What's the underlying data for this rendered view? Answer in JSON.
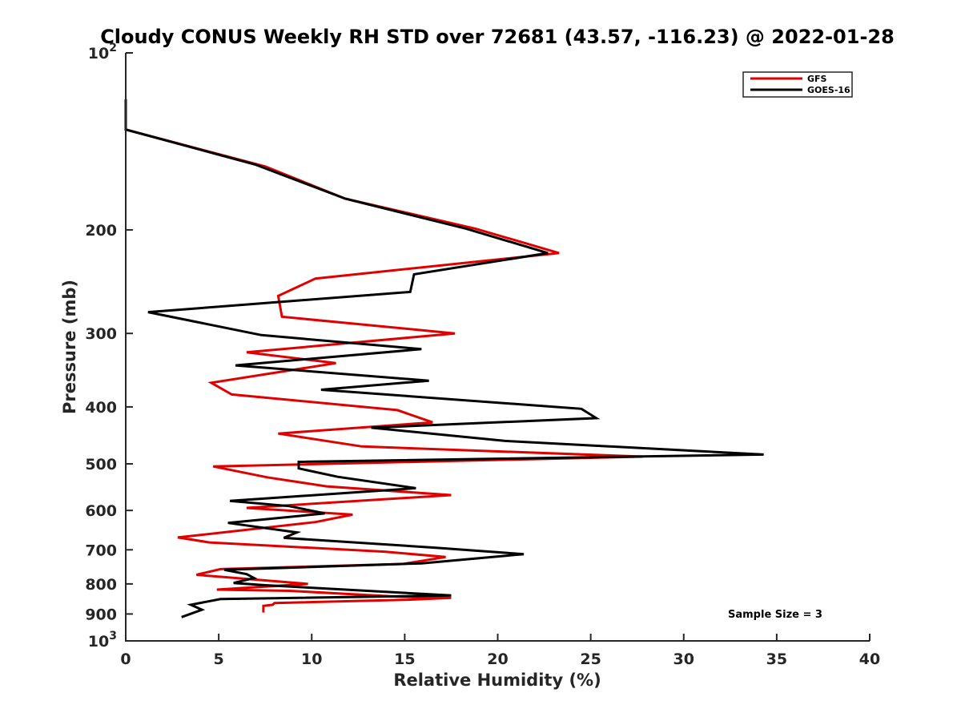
{
  "chart_data": {
    "type": "line",
    "title": "Cloudy CONUS Weekly RH STD over 72681 (43.57, -116.23) @ 2022-01-28",
    "xlabel": "Relative Humidity (%)",
    "ylabel": "Pressure (mb)",
    "xlim": [
      0,
      40
    ],
    "ylim": [
      100,
      1000
    ],
    "y_scale": "log",
    "y_reversed": true,
    "grid": false,
    "legend_position": "top-right",
    "x_ticks": [
      "0",
      "5",
      "10",
      "15",
      "20",
      "25",
      "30",
      "35",
      "40"
    ],
    "y_ticks": [
      {
        "value": 100,
        "base": "10",
        "exp": "2"
      },
      {
        "value": 200,
        "label": "200"
      },
      {
        "value": 300,
        "label": "300"
      },
      {
        "value": 400,
        "label": "400"
      },
      {
        "value": 500,
        "label": "500"
      },
      {
        "value": 600,
        "label": "600"
      },
      {
        "value": 700,
        "label": "700"
      },
      {
        "value": 800,
        "label": "800"
      },
      {
        "value": 900,
        "label": "900"
      },
      {
        "value": 1000,
        "base": "10",
        "exp": "3"
      }
    ],
    "annotation": "Sample Size = 3",
    "series": [
      {
        "name": "GFS",
        "color": "#e00000",
        "points": [
          [
            0.0,
            120
          ],
          [
            0.0,
            135
          ],
          [
            7.5,
            156
          ],
          [
            11.8,
            177
          ],
          [
            18.8,
            199
          ],
          [
            23.3,
            219
          ],
          [
            10.2,
            242
          ],
          [
            8.2,
            259
          ],
          [
            8.4,
            281
          ],
          [
            17.7,
            300
          ],
          [
            6.5,
            323
          ],
          [
            11.3,
            337
          ],
          [
            4.6,
            364
          ],
          [
            5.7,
            381
          ],
          [
            14.6,
            405
          ],
          [
            16.5,
            425
          ],
          [
            8.2,
            444
          ],
          [
            12.7,
            467
          ],
          [
            27.8,
            486
          ],
          [
            4.7,
            505
          ],
          [
            7.6,
            527
          ],
          [
            10.8,
            546
          ],
          [
            17.5,
            565
          ],
          [
            6.5,
            594
          ],
          [
            12.2,
            610
          ],
          [
            10.2,
            628
          ],
          [
            2.8,
            667
          ],
          [
            4.5,
            680
          ],
          [
            13.9,
            705
          ],
          [
            17.2,
            720
          ],
          [
            14.9,
            740
          ],
          [
            5.1,
            755
          ],
          [
            3.8,
            772
          ],
          [
            7.3,
            788
          ],
          [
            9.8,
            800
          ],
          [
            4.9,
            818
          ],
          [
            8.8,
            822
          ],
          [
            14.6,
            841
          ],
          [
            17.5,
            845
          ],
          [
            15.2,
            851
          ],
          [
            8.0,
            862
          ],
          [
            7.9,
            868
          ],
          [
            7.4,
            872
          ],
          [
            7.4,
            895
          ]
        ]
      },
      {
        "name": "GOES-16",
        "color": "#000000",
        "points": [
          [
            0.0,
            120
          ],
          [
            0.0,
            135
          ],
          [
            7.0,
            155
          ],
          [
            11.8,
            177
          ],
          [
            18.3,
            199
          ],
          [
            22.7,
            219
          ],
          [
            15.5,
            238
          ],
          [
            15.3,
            255
          ],
          [
            1.2,
            276
          ],
          [
            7.3,
            302
          ],
          [
            15.9,
            319
          ],
          [
            5.9,
            340
          ],
          [
            16.3,
            361
          ],
          [
            10.5,
            374
          ],
          [
            24.5,
            403
          ],
          [
            25.3,
            418
          ],
          [
            13.2,
            434
          ],
          [
            20.4,
            457
          ],
          [
            34.3,
            482
          ],
          [
            9.3,
            496
          ],
          [
            9.3,
            509
          ],
          [
            11.4,
            526
          ],
          [
            15.6,
            550
          ],
          [
            5.6,
            578
          ],
          [
            8.8,
            590
          ],
          [
            10.7,
            607
          ],
          [
            5.5,
            630
          ],
          [
            9.2,
            654
          ],
          [
            8.5,
            668
          ],
          [
            16.6,
            694
          ],
          [
            21.4,
            712
          ],
          [
            15.9,
            738
          ],
          [
            5.3,
            757
          ],
          [
            6.5,
            770
          ],
          [
            6.9,
            782
          ],
          [
            5.8,
            797
          ],
          [
            7.5,
            804
          ],
          [
            17.5,
            837
          ],
          [
            5.1,
            849
          ],
          [
            3.5,
            868
          ],
          [
            4.1,
            885
          ],
          [
            3.0,
            911
          ]
        ]
      }
    ]
  }
}
